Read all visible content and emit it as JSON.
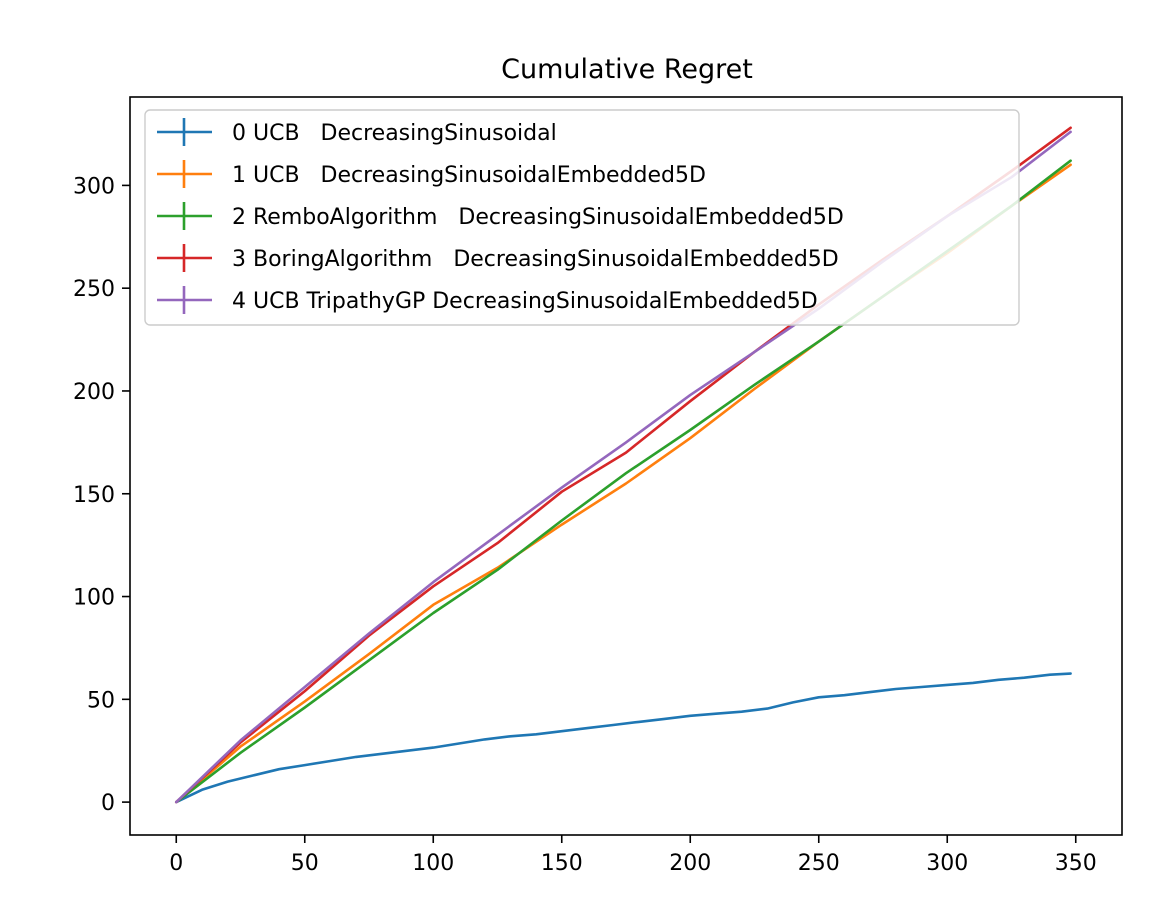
{
  "chart_data": {
    "type": "line",
    "title": "Cumulative Regret",
    "xlabel": "",
    "ylabel": "",
    "xlim": [
      -18,
      368
    ],
    "ylim": [
      -16,
      343
    ],
    "xticks": [
      0,
      50,
      100,
      150,
      200,
      250,
      300,
      350
    ],
    "yticks": [
      0,
      50,
      100,
      150,
      200,
      250,
      300
    ],
    "legend_position": "top-left",
    "grid": false,
    "series": [
      {
        "name": "0 UCB   DecreasingSinusoidal",
        "color": "#1f77b4",
        "x": [
          0,
          10,
          20,
          30,
          40,
          50,
          60,
          70,
          80,
          90,
          100,
          110,
          120,
          130,
          140,
          150,
          160,
          170,
          180,
          190,
          200,
          210,
          220,
          230,
          240,
          250,
          260,
          270,
          280,
          290,
          300,
          310,
          320,
          330,
          340,
          348
        ],
        "y": [
          0,
          6,
          10,
          13,
          16,
          18,
          20,
          22,
          23.5,
          25,
          26.5,
          28.5,
          30.5,
          32,
          33,
          34.5,
          36,
          37.5,
          39,
          40.5,
          42,
          43,
          44,
          45.5,
          48.5,
          51,
          52,
          53.5,
          55,
          56,
          57,
          58,
          59.5,
          60.5,
          62,
          62.5
        ]
      },
      {
        "name": "1 UCB   DecreasingSinusoidalEmbedded5D",
        "color": "#ff7f0e",
        "x": [
          0,
          25,
          50,
          75,
          100,
          125,
          150,
          175,
          200,
          225,
          250,
          275,
          300,
          325,
          348
        ],
        "y": [
          0,
          27,
          49,
          72,
          96,
          114,
          135,
          155,
          177,
          201,
          224,
          246,
          267,
          290,
          310
        ]
      },
      {
        "name": "2 RemboAlgorithm   DecreasingSinusoidalEmbedded5D",
        "color": "#2ca02c",
        "x": [
          0,
          25,
          50,
          75,
          100,
          125,
          150,
          175,
          200,
          225,
          250,
          275,
          300,
          325,
          348
        ],
        "y": [
          0,
          24,
          46,
          69,
          92,
          113,
          137,
          160,
          181,
          203,
          224,
          246,
          268,
          290,
          312
        ]
      },
      {
        "name": "3 BoringAlgorithm   DecreasingSinusoidalEmbedded5D",
        "color": "#d62728",
        "x": [
          0,
          25,
          50,
          75,
          100,
          125,
          150,
          175,
          200,
          225,
          250,
          275,
          300,
          325,
          348
        ],
        "y": [
          0,
          29,
          54,
          81,
          105,
          126,
          151,
          170,
          195,
          219,
          242,
          264,
          285,
          307,
          328
        ]
      },
      {
        "name": "4 UCB TripathyGP DecreasingSinusoidalEmbedded5D",
        "color": "#9467bd",
        "x": [
          0,
          25,
          50,
          75,
          100,
          125,
          150,
          175,
          200,
          225,
          250,
          275,
          300,
          325,
          348
        ],
        "y": [
          0,
          30,
          56,
          82,
          107,
          130,
          153,
          175,
          198,
          219,
          240,
          263,
          285,
          304,
          326
        ]
      }
    ]
  }
}
